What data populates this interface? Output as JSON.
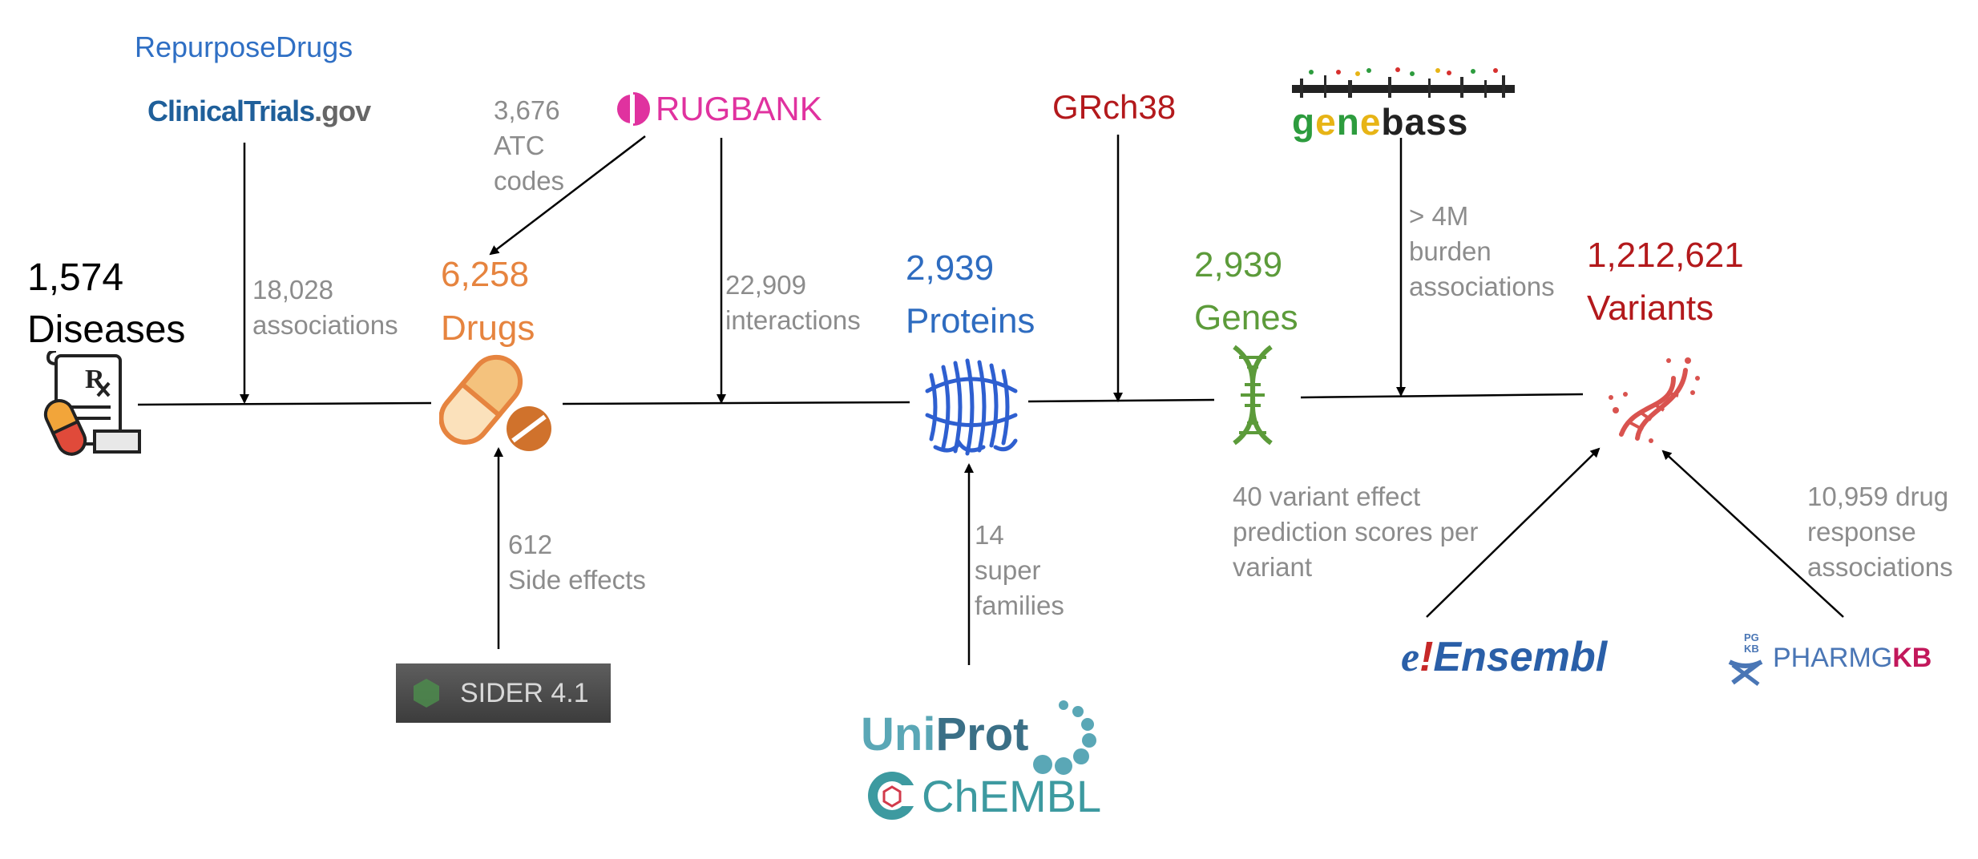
{
  "colors": {
    "diseases": "#000000",
    "drugs": "#e6843f",
    "proteins": "#2e6cc0",
    "genes": "#5c9b3a",
    "variants": "#b3191c",
    "annotation": "#8c8c8c",
    "repurpose": "#2f6fc4",
    "drugbank": "#e0329f",
    "grch38": "#b3191c",
    "uniprot": "#5aa7b6",
    "chembl": "#3d9aa0",
    "ensembl": "#2a5fa8",
    "pharmgkb_blue": "#4a76b5",
    "pharmgkb_red": "#c2185b"
  },
  "nodes": {
    "diseases": {
      "count": "1,574",
      "label": "Diseases",
      "icon": "prescription-icon"
    },
    "drugs": {
      "count": "6,258",
      "label": "Drugs",
      "icon": "pill-icon"
    },
    "proteins": {
      "count": "2,939",
      "label": "Proteins",
      "icon": "protein-structure-icon"
    },
    "genes": {
      "count": "2,939",
      "label": "Genes",
      "icon": "dna-helix-icon"
    },
    "variants": {
      "count": "1,212,621",
      "label": "Variants",
      "icon": "mutated-dna-icon"
    }
  },
  "sources": {
    "repurpose": "RepurposeDrugs",
    "clinicaltrials_main": "ClinicalTrials",
    "clinicaltrials_suffix": ".gov",
    "drugbank": "RUGBANK",
    "grch38": "GRch38",
    "genebass": "genebass",
    "sider": "SIDER 4.1",
    "uniprot_uni": "Uni",
    "uniprot_prot": "Prot",
    "chembl": "ChEMBL",
    "ensembl_e": "e",
    "ensembl_bang": "!",
    "ensembl_name": "Ensembl",
    "pharmgkb_main": "PHARMG",
    "pharmgkb_kb": "KB",
    "pharmgkb_mark_top": "PG",
    "pharmgkb_mark_bottom": "KB"
  },
  "annotations": {
    "clinicaltrials_line1": "18,028",
    "clinicaltrials_line2": "associations",
    "atc_line1": "3,676",
    "atc_line2": "ATC",
    "atc_line3": "codes",
    "drugbank_line1": "22,909",
    "drugbank_line2": "interactions",
    "sider_line1": "612",
    "sider_line2": "Side effects",
    "uniprot_line1": "14",
    "uniprot_line2": "super",
    "uniprot_line3": "families",
    "genebass_line1": "> 4M",
    "genebass_line2": "burden",
    "genebass_line3": "associations",
    "ensembl_line1": "40 variant effect",
    "ensembl_line2": "prediction scores per",
    "ensembl_line3": "variant",
    "pharmgkb_line1": "10,959 drug",
    "pharmgkb_line2": "response",
    "pharmgkb_line3": "associations"
  }
}
